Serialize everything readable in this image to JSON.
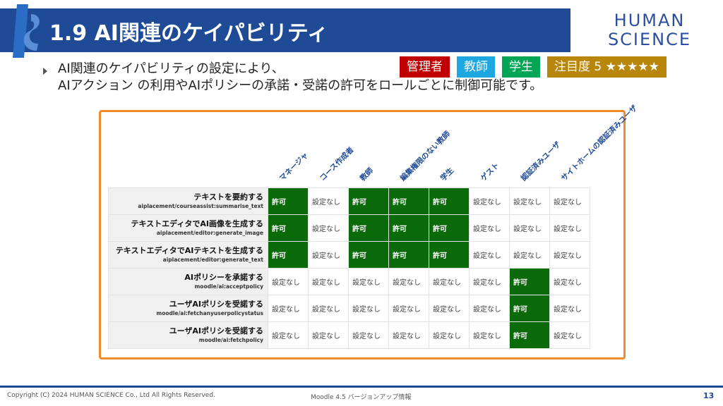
{
  "header": {
    "title": "1.9 AI関連のケイパビリティ",
    "brand_line1": "HUMAN",
    "brand_line2": "SCIENCE"
  },
  "badges": {
    "admin": "管理者",
    "teacher": "教師",
    "student": "学生",
    "attention": "注目度  5  ★★★★★"
  },
  "description": {
    "line1": "AI関連のケイパビリティの設定により、",
    "line2": "AIアクション の利用やAIポリシーの承諾・受諾の許可をロールごとに制御可能です。"
  },
  "table": {
    "columns": [
      "マネージャ",
      "コース作成者",
      "教師",
      "編集権限のない教師",
      "学生",
      "ゲスト",
      "認証済みユーザ",
      "サイトホームの認証済みユーザ"
    ],
    "rows": [
      {
        "name": "テキストを要約する",
        "code": "aiplacement/courseassist:summarise_text",
        "cells": [
          "許可",
          "設定なし",
          "許可",
          "許可",
          "許可",
          "設定なし",
          "設定なし",
          "設定なし"
        ]
      },
      {
        "name": "テキストエディタでAI画像を生成する",
        "code": "aiplacement/editor:generate_image",
        "cells": [
          "許可",
          "設定なし",
          "許可",
          "許可",
          "許可",
          "設定なし",
          "設定なし",
          "設定なし"
        ]
      },
      {
        "name": "テキストエディタでAIテキストを生成する",
        "code": "aiplacement/editor:generate_text",
        "cells": [
          "許可",
          "設定なし",
          "許可",
          "許可",
          "許可",
          "設定なし",
          "設定なし",
          "設定なし"
        ]
      },
      {
        "name": "AIポリシーを承諾する",
        "code": "moodle/ai:acceptpolicy",
        "cells": [
          "設定なし",
          "設定なし",
          "設定なし",
          "設定なし",
          "設定なし",
          "設定なし",
          "許可",
          "設定なし"
        ]
      },
      {
        "name": "ユーザAIポリシを受諾する",
        "code": "moodle/ai:fetchanyuserpolicystatus",
        "cells": [
          "設定なし",
          "設定なし",
          "設定なし",
          "設定なし",
          "設定なし",
          "設定なし",
          "許可",
          "設定なし"
        ]
      },
      {
        "name": "ユーザAIポリシを受諾する",
        "code": "moodle/ai:fetchpolicy",
        "cells": [
          "設定なし",
          "設定なし",
          "設定なし",
          "設定なし",
          "設定なし",
          "設定なし",
          "許可",
          "設定なし"
        ]
      }
    ],
    "granted_value": "許可",
    "granted_color": "#0b6b0b"
  },
  "footer": {
    "copyright": "Copyright (C) 2024 HUMAN SCIENCE Co., Ltd All Rights Reserved.",
    "product": "Moodle 4.5 バージョンアップ情報",
    "page": "13"
  },
  "colors": {
    "title_bar": "#1f4a96",
    "frame": "#f08a2b",
    "admin": "#c00000",
    "teacher": "#1ea6e0",
    "student": "#00a656",
    "attention": "#b8860b"
  }
}
